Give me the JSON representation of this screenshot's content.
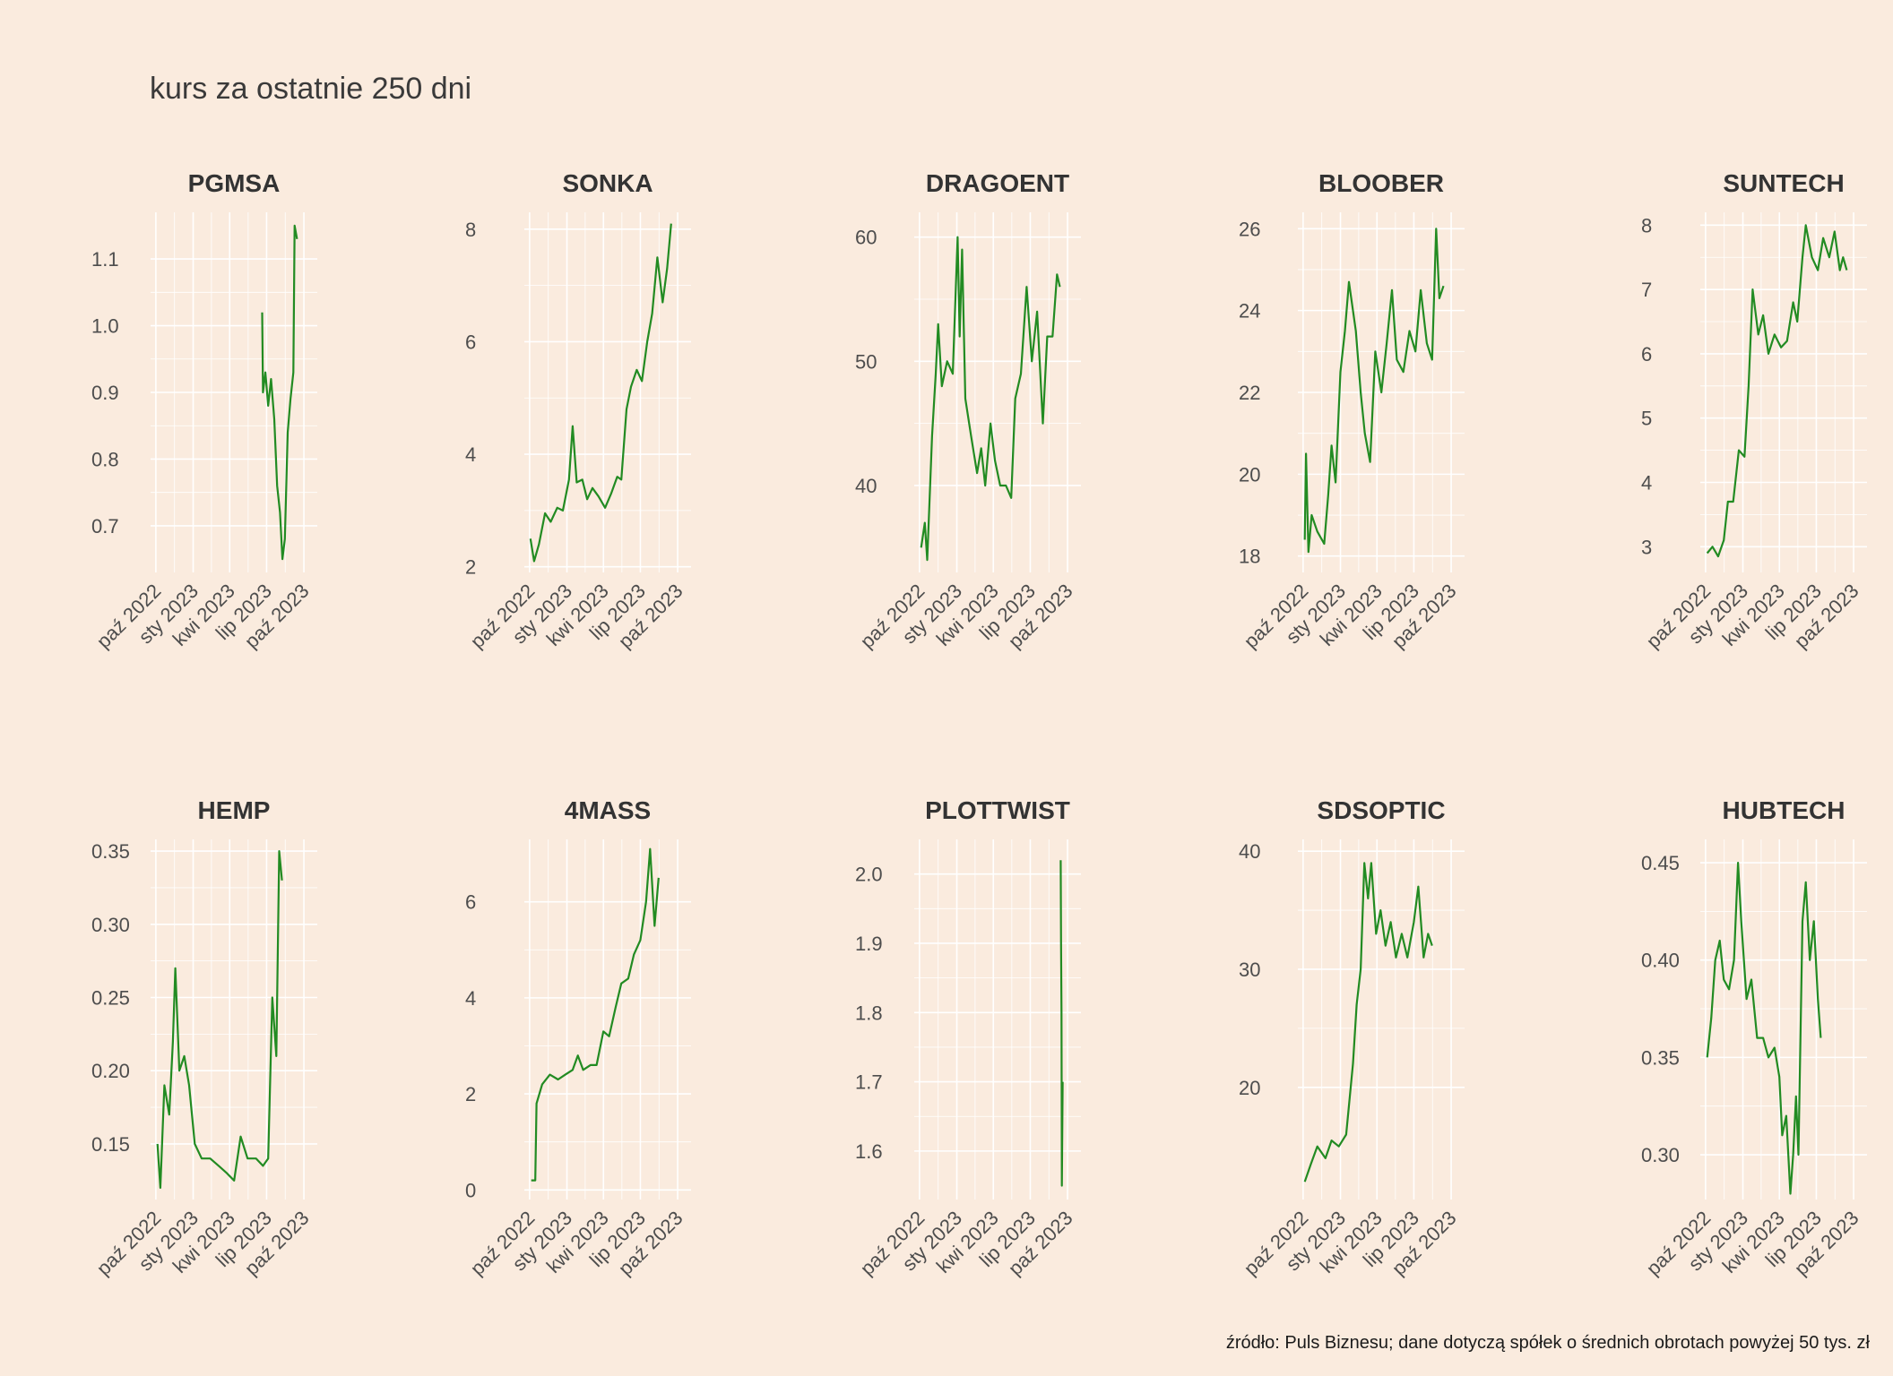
{
  "title": "kurs za ostatnie 250 dni",
  "caption": "źródło: Puls Biznesu; dane dotyczą spółek o średnich obrotach powyżej 50 tys. zł",
  "colors": {
    "background": "#faebde",
    "line": "#228b22",
    "grid": "#ffffff"
  },
  "chart_data": {
    "type": "line",
    "x_ticks": [
      "paź 2022",
      "sty 2023",
      "kwi 2023",
      "lip 2023",
      "paź 2023"
    ],
    "x_tick_dates": [
      "2022-10-01",
      "2023-01-01",
      "2023-04-01",
      "2023-07-01",
      "2023-10-01"
    ],
    "x_range": [
      "2022-09-18",
      "2023-11-03"
    ],
    "grid": true,
    "panels": [
      {
        "name": "PGMSA",
        "ylim": [
          0.63,
          1.17
        ],
        "yticks": [
          "0.7",
          "0.8",
          "0.9",
          "1.0",
          "1.1"
        ],
        "points": [
          [
            "2023-06-20",
            1.02
          ],
          [
            "2023-06-22",
            0.9
          ],
          [
            "2023-06-28",
            0.93
          ],
          [
            "2023-07-05",
            0.88
          ],
          [
            "2023-07-12",
            0.92
          ],
          [
            "2023-07-20",
            0.86
          ],
          [
            "2023-07-27",
            0.76
          ],
          [
            "2023-08-03",
            0.72
          ],
          [
            "2023-08-09",
            0.65
          ],
          [
            "2023-08-15",
            0.68
          ],
          [
            "2023-08-22",
            0.84
          ],
          [
            "2023-08-29",
            0.89
          ],
          [
            "2023-09-05",
            0.93
          ],
          [
            "2023-09-08",
            1.15
          ],
          [
            "2023-09-14",
            1.13
          ]
        ]
      },
      {
        "name": "SONKA",
        "ylim": [
          1.9,
          8.3
        ],
        "yticks": [
          "2",
          "4",
          "6",
          "8"
        ],
        "points": [
          [
            "2022-10-03",
            2.5
          ],
          [
            "2022-10-12",
            2.1
          ],
          [
            "2022-10-24",
            2.4
          ],
          [
            "2022-11-08",
            2.95
          ],
          [
            "2022-11-22",
            2.8
          ],
          [
            "2022-12-08",
            3.05
          ],
          [
            "2022-12-22",
            3.0
          ],
          [
            "2023-01-06",
            3.55
          ],
          [
            "2023-01-15",
            4.5
          ],
          [
            "2023-01-25",
            3.5
          ],
          [
            "2023-02-08",
            3.55
          ],
          [
            "2023-02-20",
            3.2
          ],
          [
            "2023-03-05",
            3.4
          ],
          [
            "2023-03-20",
            3.25
          ],
          [
            "2023-04-05",
            3.05
          ],
          [
            "2023-04-20",
            3.3
          ],
          [
            "2023-05-05",
            3.6
          ],
          [
            "2023-05-15",
            3.55
          ],
          [
            "2023-05-28",
            4.8
          ],
          [
            "2023-06-08",
            5.2
          ],
          [
            "2023-06-22",
            5.5
          ],
          [
            "2023-07-05",
            5.3
          ],
          [
            "2023-07-18",
            6.0
          ],
          [
            "2023-07-30",
            6.5
          ],
          [
            "2023-08-12",
            7.5
          ],
          [
            "2023-08-25",
            6.7
          ],
          [
            "2023-09-05",
            7.3
          ],
          [
            "2023-09-15",
            8.1
          ]
        ]
      },
      {
        "name": "DRAGOENT",
        "ylim": [
          33,
          62
        ],
        "yticks": [
          "40",
          "50",
          "60"
        ],
        "points": [
          [
            "2022-10-05",
            35
          ],
          [
            "2022-10-14",
            37
          ],
          [
            "2022-10-20",
            34
          ],
          [
            "2022-11-01",
            44
          ],
          [
            "2022-11-10",
            49
          ],
          [
            "2022-11-16",
            53
          ],
          [
            "2022-11-25",
            48
          ],
          [
            "2022-12-08",
            50
          ],
          [
            "2022-12-22",
            49
          ],
          [
            "2023-01-03",
            60
          ],
          [
            "2023-01-08",
            52
          ],
          [
            "2023-01-14",
            59
          ],
          [
            "2023-01-22",
            47
          ],
          [
            "2023-02-05",
            44
          ],
          [
            "2023-02-20",
            41
          ],
          [
            "2023-03-02",
            43
          ],
          [
            "2023-03-12",
            40
          ],
          [
            "2023-03-25",
            45
          ],
          [
            "2023-04-05",
            42
          ],
          [
            "2023-04-18",
            40
          ],
          [
            "2023-05-02",
            40
          ],
          [
            "2023-05-15",
            39
          ],
          [
            "2023-05-25",
            47
          ],
          [
            "2023-06-08",
            49
          ],
          [
            "2023-06-22",
            56
          ],
          [
            "2023-07-05",
            50
          ],
          [
            "2023-07-18",
            54
          ],
          [
            "2023-08-01",
            45
          ],
          [
            "2023-08-12",
            52
          ],
          [
            "2023-08-25",
            52
          ],
          [
            "2023-09-05",
            57
          ],
          [
            "2023-09-12",
            56
          ]
        ]
      },
      {
        "name": "BLOOBER",
        "ylim": [
          17.6,
          26.4
        ],
        "yticks": [
          "18",
          "20",
          "22",
          "24",
          "26"
        ],
        "points": [
          [
            "2022-10-05",
            18.4
          ],
          [
            "2022-10-08",
            20.5
          ],
          [
            "2022-10-14",
            18.1
          ],
          [
            "2022-10-22",
            19.0
          ],
          [
            "2022-11-05",
            18.6
          ],
          [
            "2022-11-22",
            18.3
          ],
          [
            "2022-12-02",
            19.5
          ],
          [
            "2022-12-10",
            20.7
          ],
          [
            "2022-12-20",
            19.8
          ],
          [
            "2023-01-01",
            22.5
          ],
          [
            "2023-01-12",
            23.5
          ],
          [
            "2023-01-22",
            24.7
          ],
          [
            "2023-02-08",
            23.5
          ],
          [
            "2023-02-20",
            22.0
          ],
          [
            "2023-03-02",
            21.0
          ],
          [
            "2023-03-15",
            20.3
          ],
          [
            "2023-03-28",
            23.0
          ],
          [
            "2023-04-12",
            22.0
          ],
          [
            "2023-04-25",
            23.2
          ],
          [
            "2023-05-08",
            24.5
          ],
          [
            "2023-05-20",
            22.8
          ],
          [
            "2023-06-05",
            22.5
          ],
          [
            "2023-06-20",
            23.5
          ],
          [
            "2023-07-05",
            23.0
          ],
          [
            "2023-07-18",
            24.5
          ],
          [
            "2023-08-02",
            23.2
          ],
          [
            "2023-08-15",
            22.8
          ],
          [
            "2023-08-25",
            26.0
          ],
          [
            "2023-09-02",
            24.3
          ],
          [
            "2023-09-12",
            24.6
          ]
        ]
      },
      {
        "name": "SUNTECH",
        "ylim": [
          2.6,
          8.2
        ],
        "yticks": [
          "3",
          "4",
          "5",
          "6",
          "7",
          "8"
        ],
        "points": [
          [
            "2022-10-05",
            2.9
          ],
          [
            "2022-10-18",
            3.0
          ],
          [
            "2022-11-01",
            2.85
          ],
          [
            "2022-11-15",
            3.1
          ],
          [
            "2022-11-25",
            3.7
          ],
          [
            "2022-12-08",
            3.7
          ],
          [
            "2022-12-22",
            4.5
          ],
          [
            "2023-01-05",
            4.4
          ],
          [
            "2023-01-15",
            5.5
          ],
          [
            "2023-01-25",
            7.0
          ],
          [
            "2023-02-08",
            6.3
          ],
          [
            "2023-02-20",
            6.6
          ],
          [
            "2023-03-05",
            6.0
          ],
          [
            "2023-03-20",
            6.3
          ],
          [
            "2023-04-05",
            6.1
          ],
          [
            "2023-04-20",
            6.2
          ],
          [
            "2023-05-05",
            6.8
          ],
          [
            "2023-05-15",
            6.5
          ],
          [
            "2023-05-28",
            7.5
          ],
          [
            "2023-06-05",
            8.0
          ],
          [
            "2023-06-20",
            7.5
          ],
          [
            "2023-07-05",
            7.3
          ],
          [
            "2023-07-18",
            7.8
          ],
          [
            "2023-08-02",
            7.5
          ],
          [
            "2023-08-15",
            7.9
          ],
          [
            "2023-08-28",
            7.3
          ],
          [
            "2023-09-05",
            7.5
          ],
          [
            "2023-09-14",
            7.3
          ]
        ]
      },
      {
        "name": "HEMP",
        "ylim": [
          0.112,
          0.358
        ],
        "yticks": [
          "0.15",
          "0.20",
          "0.25",
          "0.30",
          "0.35"
        ],
        "points": [
          [
            "2022-10-05",
            0.15
          ],
          [
            "2022-10-12",
            0.12
          ],
          [
            "2022-10-22",
            0.19
          ],
          [
            "2022-11-03",
            0.17
          ],
          [
            "2022-11-12",
            0.22
          ],
          [
            "2022-11-18",
            0.27
          ],
          [
            "2022-11-28",
            0.2
          ],
          [
            "2022-12-10",
            0.21
          ],
          [
            "2022-12-22",
            0.19
          ],
          [
            "2023-01-05",
            0.15
          ],
          [
            "2023-01-22",
            0.14
          ],
          [
            "2023-02-12",
            0.14
          ],
          [
            "2023-03-05",
            0.135
          ],
          [
            "2023-03-25",
            0.13
          ],
          [
            "2023-04-12",
            0.125
          ],
          [
            "2023-04-28",
            0.155
          ],
          [
            "2023-05-15",
            0.14
          ],
          [
            "2023-06-05",
            0.14
          ],
          [
            "2023-06-22",
            0.135
          ],
          [
            "2023-07-05",
            0.14
          ],
          [
            "2023-07-15",
            0.25
          ],
          [
            "2023-07-25",
            0.21
          ],
          [
            "2023-08-01",
            0.35
          ],
          [
            "2023-08-08",
            0.33
          ]
        ]
      },
      {
        "name": "4MASS",
        "ylim": [
          -0.2,
          7.3
        ],
        "yticks": [
          "0",
          "2",
          "4",
          "6"
        ],
        "points": [
          [
            "2022-10-05",
            0.2
          ],
          [
            "2022-10-15",
            0.2
          ],
          [
            "2022-10-18",
            1.8
          ],
          [
            "2022-11-01",
            2.2
          ],
          [
            "2022-11-20",
            2.4
          ],
          [
            "2022-12-10",
            2.3
          ],
          [
            "2022-12-28",
            2.4
          ],
          [
            "2023-01-15",
            2.5
          ],
          [
            "2023-01-28",
            2.8
          ],
          [
            "2023-02-10",
            2.5
          ],
          [
            "2023-02-28",
            2.6
          ],
          [
            "2023-03-15",
            2.6
          ],
          [
            "2023-04-01",
            3.3
          ],
          [
            "2023-04-15",
            3.2
          ],
          [
            "2023-05-01",
            3.8
          ],
          [
            "2023-05-15",
            4.3
          ],
          [
            "2023-06-01",
            4.4
          ],
          [
            "2023-06-15",
            4.9
          ],
          [
            "2023-07-01",
            5.2
          ],
          [
            "2023-07-15",
            6.0
          ],
          [
            "2023-07-25",
            7.1
          ],
          [
            "2023-08-05",
            5.5
          ],
          [
            "2023-08-15",
            6.5
          ]
        ]
      },
      {
        "name": "PLOTTWIST",
        "ylim": [
          1.53,
          2.05
        ],
        "yticks": [
          "1.6",
          "1.7",
          "1.8",
          "1.9",
          "2.0"
        ],
        "points": [
          [
            "2023-09-14",
            2.02
          ],
          [
            "2023-09-15",
            1.9
          ],
          [
            "2023-09-16",
            1.8
          ],
          [
            "2023-09-17",
            1.55
          ],
          [
            "2023-09-19",
            1.7
          ]
        ]
      },
      {
        "name": "SDSOPTIC",
        "ylim": [
          10.5,
          41
        ],
        "yticks": [
          "20",
          "30",
          "40"
        ],
        "points": [
          [
            "2022-10-05",
            12
          ],
          [
            "2022-10-20",
            13.5
          ],
          [
            "2022-11-05",
            15
          ],
          [
            "2022-11-25",
            14
          ],
          [
            "2022-12-10",
            15.5
          ],
          [
            "2022-12-28",
            15
          ],
          [
            "2023-01-15",
            16
          ],
          [
            "2023-02-01",
            22
          ],
          [
            "2023-02-10",
            27
          ],
          [
            "2023-02-20",
            30
          ],
          [
            "2023-03-01",
            39
          ],
          [
            "2023-03-10",
            36
          ],
          [
            "2023-03-18",
            39
          ],
          [
            "2023-03-30",
            33
          ],
          [
            "2023-04-10",
            35
          ],
          [
            "2023-04-22",
            32
          ],
          [
            "2023-05-05",
            34
          ],
          [
            "2023-05-18",
            31
          ],
          [
            "2023-06-01",
            33
          ],
          [
            "2023-06-15",
            31
          ],
          [
            "2023-07-01",
            34
          ],
          [
            "2023-07-12",
            37
          ],
          [
            "2023-07-25",
            31
          ],
          [
            "2023-08-05",
            33
          ],
          [
            "2023-08-15",
            32
          ]
        ]
      },
      {
        "name": "HUBTECH",
        "ylim": [
          0.277,
          0.462
        ],
        "yticks": [
          "0.30",
          "0.35",
          "0.40",
          "0.45"
        ],
        "points": [
          [
            "2022-10-05",
            0.35
          ],
          [
            "2022-10-15",
            0.37
          ],
          [
            "2022-10-25",
            0.4
          ],
          [
            "2022-11-05",
            0.41
          ],
          [
            "2022-11-15",
            0.39
          ],
          [
            "2022-11-28",
            0.385
          ],
          [
            "2022-12-10",
            0.4
          ],
          [
            "2022-12-20",
            0.45
          ],
          [
            "2022-12-28",
            0.42
          ],
          [
            "2023-01-10",
            0.38
          ],
          [
            "2023-01-22",
            0.39
          ],
          [
            "2023-02-05",
            0.36
          ],
          [
            "2023-02-20",
            0.36
          ],
          [
            "2023-03-05",
            0.35
          ],
          [
            "2023-03-20",
            0.355
          ],
          [
            "2023-04-01",
            0.34
          ],
          [
            "2023-04-08",
            0.31
          ],
          [
            "2023-04-18",
            0.32
          ],
          [
            "2023-04-28",
            0.28
          ],
          [
            "2023-05-05",
            0.3
          ],
          [
            "2023-05-12",
            0.33
          ],
          [
            "2023-05-18",
            0.3
          ],
          [
            "2023-05-28",
            0.42
          ],
          [
            "2023-06-05",
            0.44
          ],
          [
            "2023-06-15",
            0.4
          ],
          [
            "2023-06-25",
            0.42
          ],
          [
            "2023-07-05",
            0.38
          ],
          [
            "2023-07-12",
            0.36
          ]
        ]
      }
    ]
  }
}
